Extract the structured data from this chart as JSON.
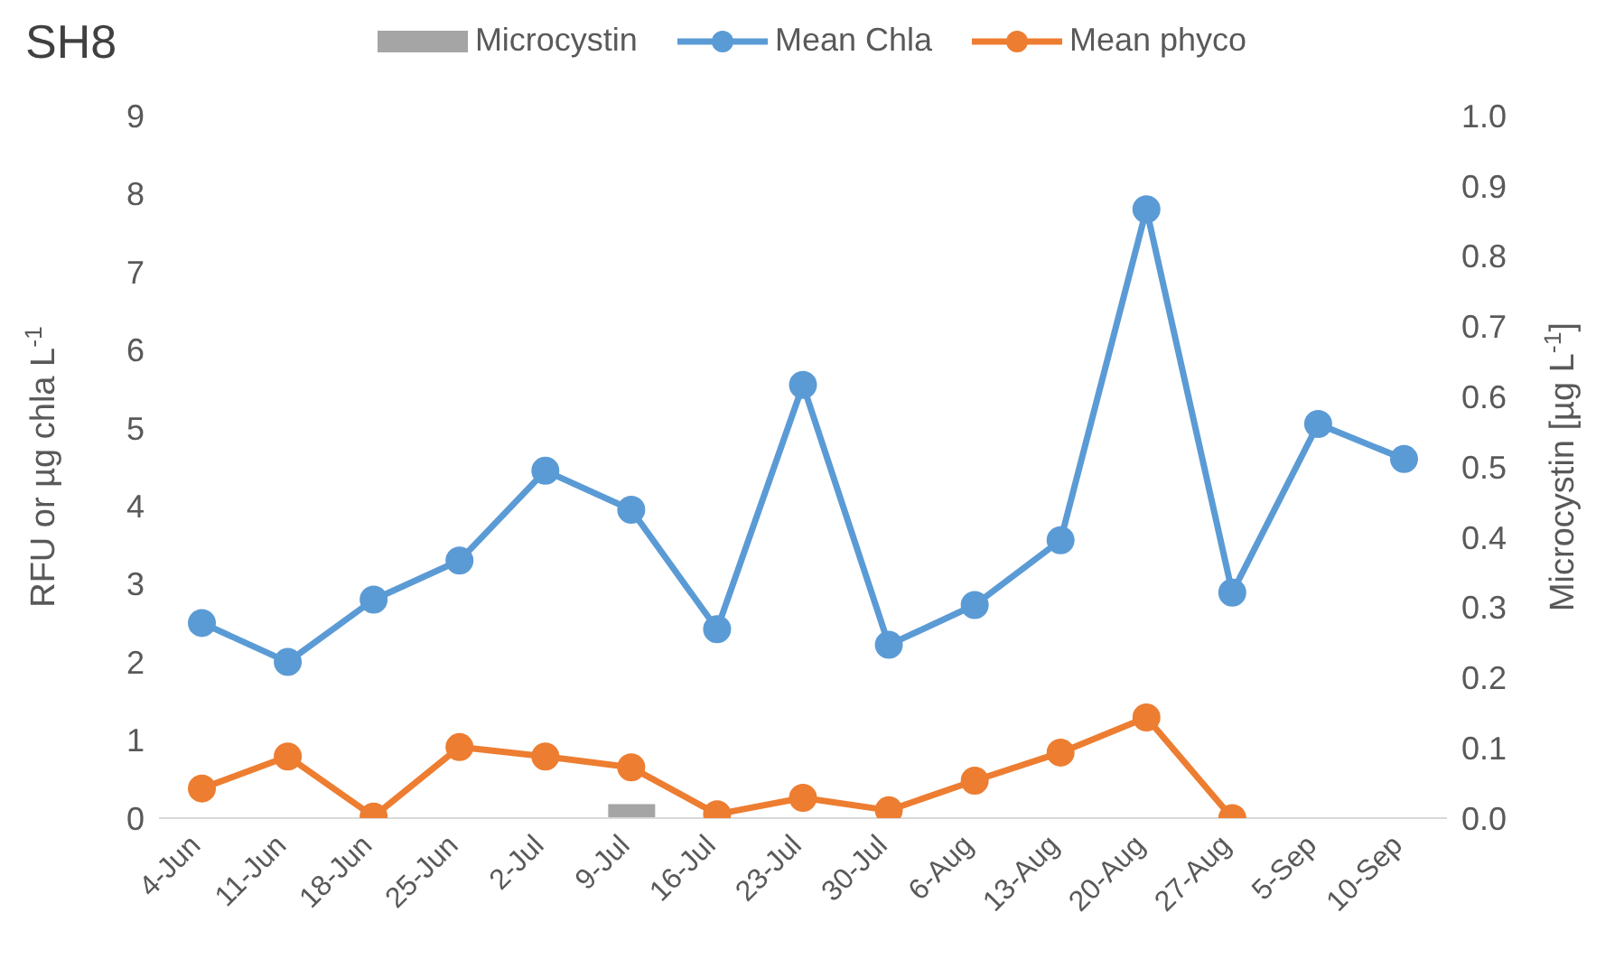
{
  "chart_data": {
    "type": "line",
    "title": "SH8",
    "ylabel": "RFU or µg chla L$^{-1}$",
    "y2label": "Microcystin [µg L$^{-1}$]",
    "categories": [
      "4-Jun",
      "11-Jun",
      "18-Jun",
      "25-Jun",
      "2-Jul",
      "9-Jul",
      "16-Jul",
      "23-Jul",
      "30-Jul",
      "6-Aug",
      "13-Aug",
      "20-Aug",
      "27-Aug",
      "5-Sep",
      "10-Sep"
    ],
    "series": [
      {
        "name": "Microcystin",
        "type": "bar",
        "axis": "y2",
        "color": "#a5a5a5",
        "values": [
          null,
          null,
          null,
          null,
          null,
          0.02,
          null,
          null,
          null,
          null,
          null,
          null,
          null,
          null,
          null
        ]
      },
      {
        "name": "Mean Chla",
        "color": "#5b9bd5",
        "values": [
          2.5,
          2.0,
          2.8,
          3.3,
          4.45,
          3.95,
          2.42,
          5.55,
          2.22,
          2.73,
          3.56,
          7.8,
          2.89,
          5.05,
          4.6
        ]
      },
      {
        "name": "Mean phyco",
        "color": "#ed7d31",
        "values": [
          0.38,
          0.79,
          0.02,
          0.91,
          0.79,
          0.65,
          0.05,
          0.26,
          0.1,
          0.48,
          0.84,
          1.29,
          0,
          null,
          null
        ]
      }
    ],
    "ylim": [
      0,
      9
    ],
    "yticks": [
      0,
      1,
      2,
      3,
      4,
      5,
      6,
      7,
      8,
      9
    ],
    "y2lim": [
      0,
      1
    ],
    "y2ticks": [
      {
        "value": 0,
        "label": "0.0"
      },
      0.1,
      0.2,
      0.3,
      0.4,
      0.5,
      0.6,
      0.7,
      0.8,
      0.9,
      {
        "value": 1,
        "label": "1.0"
      }
    ],
    "legend": "top",
    "marker": "circle",
    "line_style": "solid"
  }
}
